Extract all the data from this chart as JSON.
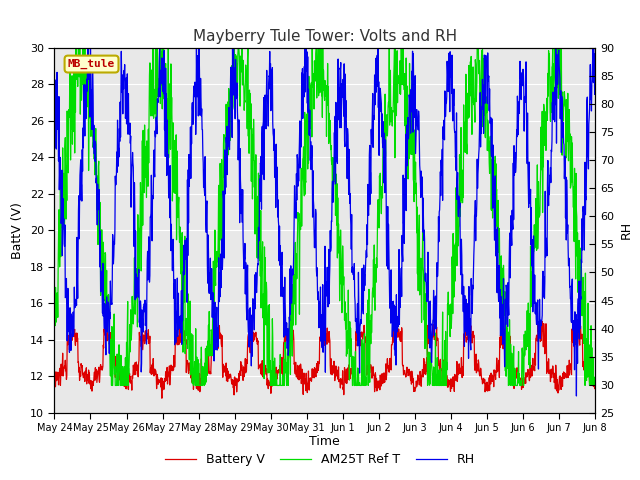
{
  "title": "Mayberry Tule Tower: Volts and RH",
  "xlabel": "Time",
  "ylabel_left": "BattV (V)",
  "ylabel_right": "RH",
  "ylim_left": [
    10,
    30
  ],
  "ylim_right": [
    25,
    90
  ],
  "yticks_left": [
    10,
    12,
    14,
    16,
    18,
    20,
    22,
    24,
    26,
    28,
    30
  ],
  "yticks_right": [
    25,
    30,
    35,
    40,
    45,
    50,
    55,
    60,
    65,
    70,
    75,
    80,
    85,
    90
  ],
  "fig_bg_color": "#ffffff",
  "plot_bg_color": "#e8e8e8",
  "grid_color": "#ffffff",
  "label_box_text": "MB_tule",
  "label_box_bg": "#ffffcc",
  "label_box_edge": "#bbaa00",
  "label_box_text_color": "#bb0000",
  "color_battery": "#dd0000",
  "color_am25t": "#00dd00",
  "color_rh": "#0000ee",
  "legend_labels": [
    "Battery V",
    "AM25T Ref T",
    "RH"
  ],
  "tick_dates": [
    "May 24",
    "May 25",
    "May 26",
    "May 27",
    "May 28",
    "May 29",
    "May 30",
    "May 31",
    "Jun 1",
    "Jun 2",
    "Jun 3",
    "Jun 4",
    "Jun 5",
    "Jun 6",
    "Jun 7",
    "Jun 8"
  ],
  "title_fontsize": 11,
  "axis_label_fontsize": 9,
  "tick_fontsize": 8,
  "xtick_fontsize": 7,
  "legend_fontsize": 9
}
